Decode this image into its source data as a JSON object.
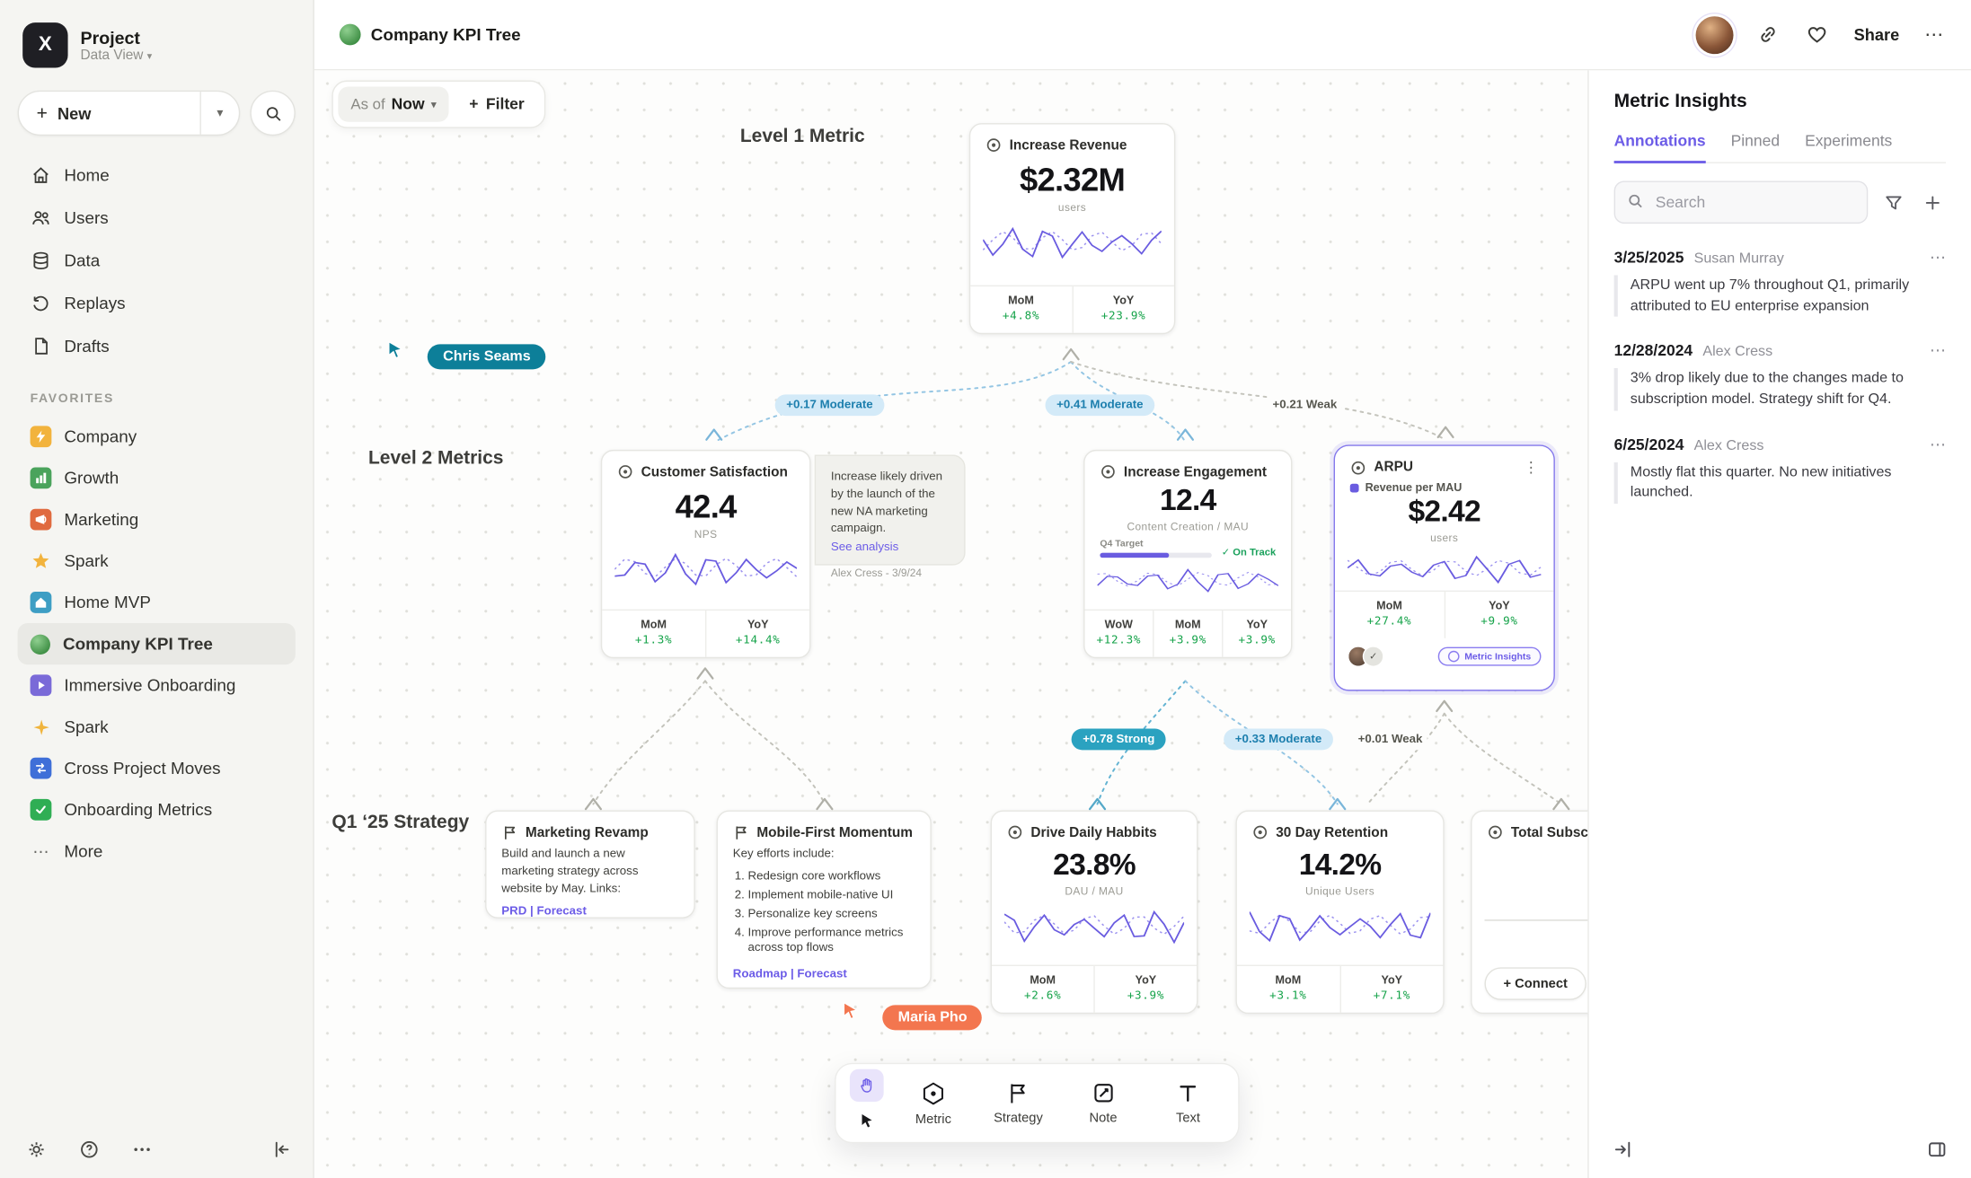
{
  "icons": {
    "ellipsis": "⋯",
    "kebab": "⋮",
    "chevron_down": "▾",
    "plus": "+",
    "check": "✓"
  },
  "colors": {
    "accent": "#6c5ce7",
    "positive": "#16a34a",
    "cursor_teal": "#0d7f99",
    "cursor_orange": "#f3764f",
    "edge_blue_bg": "#d3eaf8",
    "edge_blue_text": "#1d7fae",
    "edge_strong_bg": "#2ba2c0"
  },
  "sidebar": {
    "project": {
      "name": "Project",
      "view": "Data View"
    },
    "new_label": "New",
    "nav": [
      {
        "label": "Home"
      },
      {
        "label": "Users"
      },
      {
        "label": "Data"
      },
      {
        "label": "Replays"
      },
      {
        "label": "Drafts"
      }
    ],
    "favorites_header": "FAVORITES",
    "favorites": [
      {
        "label": "Company"
      },
      {
        "label": "Growth"
      },
      {
        "label": "Marketing"
      },
      {
        "label": "Spark"
      },
      {
        "label": "Home MVP"
      },
      {
        "label": "Company KPI Tree"
      },
      {
        "label": "Immersive Onboarding"
      },
      {
        "label": "Spark"
      },
      {
        "label": "Cross Project Moves"
      },
      {
        "label": "Onboarding Metrics"
      }
    ],
    "more_label": "More"
  },
  "header": {
    "title": "Company KPI Tree",
    "share_label": "Share"
  },
  "canvas": {
    "asof": {
      "label": "As of",
      "value": "Now"
    },
    "filter_label": "Filter",
    "row_labels": {
      "level1": "Level 1 Metric",
      "level2": "Level 2 Metrics",
      "strategy": "Q1 ‘25 Strategy"
    },
    "cursors": {
      "chris": "Chris Seams",
      "maria": "Maria Pho"
    },
    "edges": {
      "e1": "+0.17 Moderate",
      "e2": "+0.41 Moderate",
      "e3": "+0.21 Weak",
      "e4": "+0.78 Strong",
      "e5": "+0.33 Moderate",
      "e6": "+0.01 Weak"
    },
    "cards": {
      "revenue": {
        "title": "Increase Revenue",
        "value": "$2.32M",
        "unit": "users",
        "stats": [
          {
            "label": "MoM",
            "value": "+4.8%"
          },
          {
            "label": "YoY",
            "value": "+23.9%"
          }
        ]
      },
      "satisfaction": {
        "title": "Customer Satisfaction",
        "value": "42.4",
        "unit": "NPS",
        "stats": [
          {
            "label": "MoM",
            "value": "+1.3%"
          },
          {
            "label": "YoY",
            "value": "+14.4%"
          }
        ]
      },
      "note": {
        "text": "Increase likely driven by the launch of the new NA marketing campaign.",
        "link": "See analysis",
        "author": "Alex Cress - 3/9/24"
      },
      "engagement": {
        "title": "Increase Engagement",
        "value": "12.4",
        "unit": "Content Creation / MAU",
        "target_label": "Q4 Target",
        "status": "On Track",
        "stats": [
          {
            "label": "WoW",
            "value": "+12.3%"
          },
          {
            "label": "MoM",
            "value": "+3.9%"
          },
          {
            "label": "YoY",
            "value": "+3.9%"
          }
        ]
      },
      "arpu": {
        "title": "ARPU",
        "legend": "Revenue per MAU",
        "value": "$2.42",
        "unit": "users",
        "stats": [
          {
            "label": "MoM",
            "value": "+27.4%"
          },
          {
            "label": "YoY",
            "value": "+9.9%"
          }
        ],
        "badge": "Metric Insights"
      },
      "marketing_revamp": {
        "title": "Marketing Revamp",
        "body": "Build and launch a new marketing strategy across website by May. Links:",
        "links": "PRD | Forecast"
      },
      "mobile_first": {
        "title": "Mobile-First Momentum",
        "intro": "Key efforts include:",
        "items": [
          "Redesign core workflows",
          "Implement mobile-native UI",
          "Personalize key screens",
          "Improve performance metrics across top flows"
        ],
        "links": "Roadmap | Forecast"
      },
      "daily_habits": {
        "title": "Drive Daily Habbits",
        "value": "23.8%",
        "unit": "DAU / MAU",
        "stats": [
          {
            "label": "MoM",
            "value": "+2.6%"
          },
          {
            "label": "YoY",
            "value": "+3.9%"
          }
        ]
      },
      "retention": {
        "title": "30 Day Retention",
        "value": "14.2%",
        "unit": "Unique Users",
        "stats": [
          {
            "label": "MoM",
            "value": "+3.1%"
          },
          {
            "label": "YoY",
            "value": "+7.1%"
          }
        ]
      },
      "subscriptions": {
        "title": "Total Subscript",
        "connect_label": "+ Connect"
      }
    }
  },
  "toolbar": {
    "tools": [
      {
        "label": "Metric"
      },
      {
        "label": "Strategy"
      },
      {
        "label": "Note"
      },
      {
        "label": "Text"
      }
    ]
  },
  "panel": {
    "title": "Metric Insights",
    "tabs": [
      {
        "label": "Annotations"
      },
      {
        "label": "Pinned"
      },
      {
        "label": "Experiments"
      }
    ],
    "search_placeholder": "Search",
    "annotations": [
      {
        "date": "3/25/2025",
        "author": "Susan Murray",
        "text": "ARPU went up 7% throughout Q1, primarily attributed to EU enterprise expansion"
      },
      {
        "date": "12/28/2024",
        "author": "Alex Cress",
        "text": "3% drop likely due to the changes made to subscription model. Strategy shift for Q4."
      },
      {
        "date": "6/25/2024",
        "author": "Alex Cress",
        "text": "Mostly flat this quarter. No new initiatives launched."
      }
    ]
  }
}
